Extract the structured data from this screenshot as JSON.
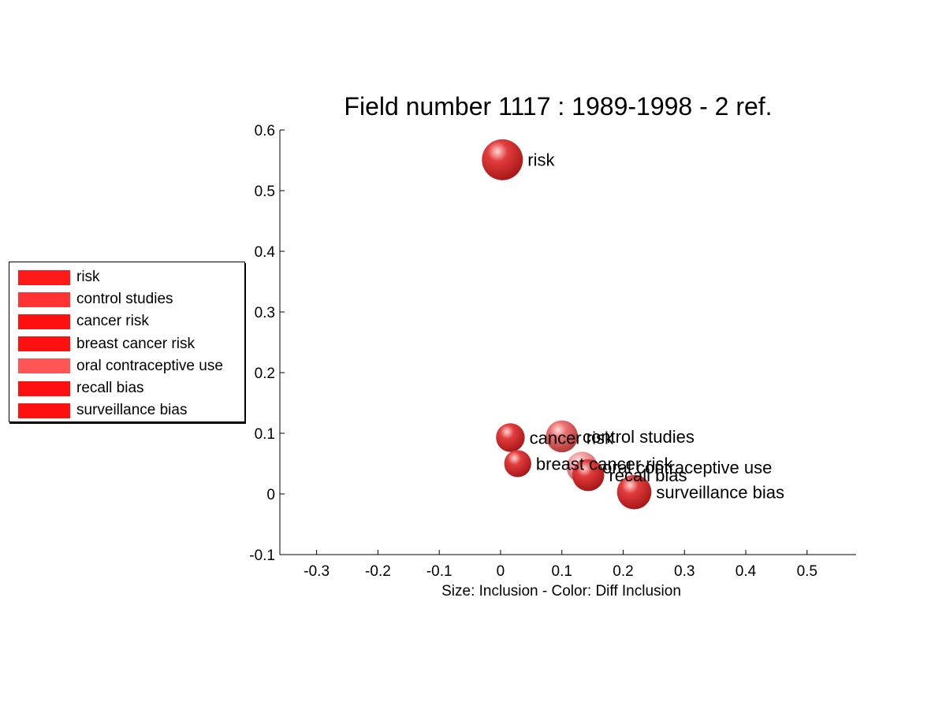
{
  "chart_data": {
    "type": "scatter",
    "title": "Field number 1117 : 1989-1998  - 2 ref.",
    "xlabel": "Size: Inclusion - Color: Diff Inclusion",
    "ylabel": "",
    "xlim": [
      -0.36,
      0.58
    ],
    "ylim": [
      -0.1,
      0.6
    ],
    "xticks": [
      -0.3,
      -0.2,
      -0.1,
      0,
      0.1,
      0.2,
      0.3,
      0.4,
      0.5
    ],
    "xtick_labels": [
      "-0.3",
      "-0.2",
      "-0.1",
      "0",
      "0.1",
      "0.2",
      "0.3",
      "0.4",
      "0.5"
    ],
    "yticks": [
      -0.1,
      0,
      0.1,
      0.2,
      0.3,
      0.4,
      0.5,
      0.6
    ],
    "ytick_labels": [
      "-0.1",
      "0",
      "0.1",
      "0.2",
      "0.3",
      "0.4",
      "0.5",
      "0.6"
    ],
    "legend_position": "left",
    "grid": false,
    "points": [
      {
        "label": "risk",
        "x": 0.003,
        "y": 0.551,
        "size": 1.0,
        "color": "#e23c3c",
        "alpha": 1.0
      },
      {
        "label": "control studies",
        "x": 0.1,
        "y": 0.095,
        "size": 0.78,
        "color": "#e85a5a",
        "alpha": 0.85
      },
      {
        "label": "cancer risk",
        "x": 0.016,
        "y": 0.093,
        "size": 0.7,
        "color": "#e23c3c",
        "alpha": 1.0
      },
      {
        "label": "breast cancer risk",
        "x": 0.028,
        "y": 0.05,
        "size": 0.66,
        "color": "#e23c3c",
        "alpha": 1.0
      },
      {
        "label": "oral contraceptive use",
        "x": 0.133,
        "y": 0.044,
        "size": 0.76,
        "color": "#f07a7a",
        "alpha": 0.7
      },
      {
        "label": "recall bias",
        "x": 0.143,
        "y": 0.031,
        "size": 0.78,
        "color": "#e23c3c",
        "alpha": 1.0
      },
      {
        "label": "surveillance bias",
        "x": 0.218,
        "y": 0.003,
        "size": 0.84,
        "color": "#e23c3c",
        "alpha": 1.0
      }
    ],
    "legend": [
      {
        "label": "risk",
        "color": "#ff1a1a"
      },
      {
        "label": "control studies",
        "color": "#ff3333"
      },
      {
        "label": "cancer risk",
        "color": "#ff1010"
      },
      {
        "label": "breast cancer risk",
        "color": "#ff1010"
      },
      {
        "label": "oral contraceptive use",
        "color": "#ff5555"
      },
      {
        "label": "recall bias",
        "color": "#ff1010"
      },
      {
        "label": "surveillance bias",
        "color": "#ff1010"
      }
    ]
  }
}
